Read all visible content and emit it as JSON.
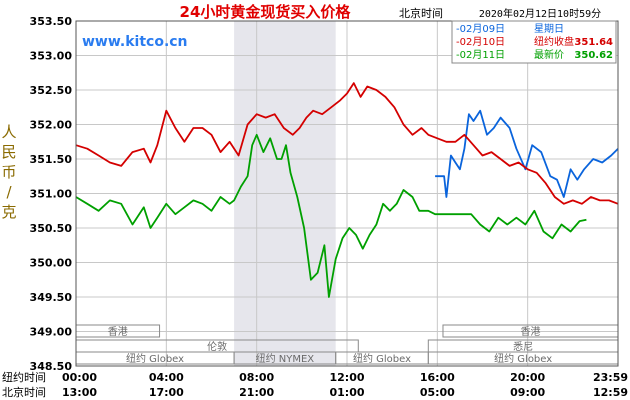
{
  "chart_data": {
    "type": "line",
    "title": "24小时黄金现货买入价格",
    "source": "www.kitco.cn",
    "timestamp_label": "北京时间",
    "timestamp": "2020年02月12日10时59分",
    "ylabel": "人民币/克",
    "ylim": [
      348.5,
      353.5
    ],
    "yticks": [
      "353.50",
      "353.00",
      "352.50",
      "352.00",
      "351.50",
      "351.00",
      "350.50",
      "350.00",
      "349.50",
      "349.00",
      "348.50"
    ],
    "xlim": [
      0,
      24
    ],
    "x_ticks": [
      {
        "x": 0,
        "ny": "00:00",
        "bj": "13:00"
      },
      {
        "x": 4,
        "ny": "04:00",
        "bj": "17:00"
      },
      {
        "x": 8,
        "ny": "08:00",
        "bj": "21:00"
      },
      {
        "x": 12,
        "ny": "12:00",
        "bj": "01:00"
      },
      {
        "x": 16,
        "ny": "16:00",
        "bj": "05:00"
      },
      {
        "x": 20,
        "ny": "20:00",
        "bj": "09:00"
      },
      {
        "x": 24,
        "ny": "23:59",
        "bj": "12:59"
      }
    ],
    "x_row_labels": [
      "纽约时间",
      "北京时间"
    ],
    "shaded_region": [
      7,
      11.5
    ],
    "markets": [
      {
        "name": "香港",
        "start": 0,
        "end": 3.7,
        "row": 0
      },
      {
        "name": "香港",
        "start": 16.25,
        "end": 24,
        "row": 0
      },
      {
        "name": "伦敦",
        "start": 0,
        "end": 12.5,
        "row": 1
      },
      {
        "name": "悉尼",
        "start": 15.6,
        "end": 24,
        "row": 1
      },
      {
        "name": "纽约 Globex",
        "start": 0,
        "end": 7,
        "row": 2
      },
      {
        "name": "纽约 NYMEX",
        "start": 7,
        "end": 11.5,
        "row": 2
      },
      {
        "name": "纽约 Globex",
        "start": 11.5,
        "end": 15.6,
        "row": 2
      },
      {
        "name": "纽约 Globex",
        "start": 15.6,
        "end": 24,
        "row": 2
      }
    ],
    "legend": [
      {
        "label": "-02月09日",
        "extra_label": "星期日",
        "extra_value": "",
        "color": "#0a64dc"
      },
      {
        "label": "-02月10日",
        "extra_label": "纽约收盘",
        "extra_value": "351.64",
        "color": "#d40000"
      },
      {
        "label": "-02月11日",
        "extra_label": "最新价",
        "extra_value": "350.62",
        "color": "#00a000"
      }
    ],
    "series": [
      {
        "name": "02月09日",
        "color": "#0a64dc",
        "x": [
          15.9,
          16.3,
          16.4,
          16.6,
          16.8,
          17.0,
          17.2,
          17.4,
          17.6,
          17.9,
          18.2,
          18.5,
          18.8,
          19.2,
          19.5,
          19.9,
          20.2,
          20.6,
          21.0,
          21.3,
          21.6,
          21.9,
          22.2,
          22.5,
          22.9,
          23.3,
          23.7,
          24.0
        ],
        "y": [
          351.25,
          351.25,
          350.95,
          351.55,
          351.45,
          351.35,
          351.65,
          352.15,
          352.05,
          352.2,
          351.85,
          351.95,
          352.1,
          351.95,
          351.65,
          351.35,
          351.7,
          351.6,
          351.25,
          351.2,
          350.95,
          351.35,
          351.2,
          351.35,
          351.5,
          351.45,
          351.55,
          351.65
        ]
      },
      {
        "name": "02月10日",
        "color": "#d40000",
        "x": [
          0.0,
          0.5,
          1.0,
          1.5,
          2.0,
          2.5,
          3.0,
          3.3,
          3.6,
          4.0,
          4.4,
          4.8,
          5.2,
          5.6,
          6.0,
          6.4,
          6.8,
          7.2,
          7.6,
          8.0,
          8.4,
          8.8,
          9.2,
          9.6,
          9.9,
          10.2,
          10.5,
          10.9,
          11.3,
          11.7,
          12.0,
          12.3,
          12.6,
          12.9,
          13.3,
          13.7,
          14.1,
          14.5,
          14.9,
          15.3,
          15.6,
          16.0,
          16.4,
          16.8,
          17.2,
          17.6,
          18.0,
          18.4,
          18.8,
          19.2,
          19.6,
          20.0,
          20.4,
          20.8,
          21.2,
          21.6,
          22.0,
          22.4,
          22.8,
          23.2,
          23.6,
          24.0
        ],
        "y": [
          351.7,
          351.65,
          351.55,
          351.45,
          351.4,
          351.6,
          351.65,
          351.45,
          351.7,
          352.2,
          351.95,
          351.75,
          351.95,
          351.95,
          351.85,
          351.6,
          351.75,
          351.55,
          352.0,
          352.15,
          352.1,
          352.15,
          351.95,
          351.85,
          351.95,
          352.1,
          352.2,
          352.15,
          352.25,
          352.35,
          352.45,
          352.6,
          352.4,
          352.55,
          352.5,
          352.4,
          352.25,
          352.0,
          351.85,
          351.95,
          351.85,
          351.8,
          351.75,
          351.75,
          351.85,
          351.7,
          351.55,
          351.6,
          351.5,
          351.4,
          351.45,
          351.35,
          351.3,
          351.15,
          350.95,
          350.85,
          350.9,
          350.85,
          350.95,
          350.9,
          350.9,
          350.85
        ]
      },
      {
        "name": "02月11日",
        "color": "#00a000",
        "x": [
          0.0,
          0.5,
          1.0,
          1.5,
          2.0,
          2.5,
          3.0,
          3.3,
          3.6,
          4.0,
          4.4,
          4.8,
          5.2,
          5.6,
          6.0,
          6.4,
          6.8,
          7.0,
          7.3,
          7.6,
          7.8,
          8.0,
          8.3,
          8.6,
          8.9,
          9.1,
          9.3,
          9.5,
          9.8,
          10.1,
          10.4,
          10.7,
          11.0,
          11.2,
          11.5,
          11.8,
          12.1,
          12.4,
          12.7,
          13.0,
          13.3,
          13.6,
          13.9,
          14.2,
          14.5,
          14.9,
          15.2,
          15.6,
          15.9,
          16.3,
          16.7,
          17.1,
          17.5,
          17.9,
          18.3,
          18.7,
          19.1,
          19.5,
          19.9,
          20.3,
          20.7,
          21.1,
          21.5,
          21.9,
          22.3,
          22.6
        ],
        "y": [
          350.95,
          350.85,
          350.75,
          350.9,
          350.85,
          350.55,
          350.8,
          350.5,
          350.65,
          350.85,
          350.7,
          350.8,
          350.9,
          350.85,
          350.75,
          350.95,
          350.85,
          350.9,
          351.1,
          351.25,
          351.7,
          351.85,
          351.6,
          351.8,
          351.5,
          351.5,
          351.7,
          351.3,
          350.95,
          350.5,
          349.75,
          349.85,
          350.25,
          349.5,
          350.05,
          350.35,
          350.5,
          350.4,
          350.2,
          350.4,
          350.55,
          350.85,
          350.75,
          350.85,
          351.05,
          350.95,
          350.75,
          350.75,
          350.7,
          350.7,
          350.7,
          350.7,
          350.7,
          350.55,
          350.45,
          350.65,
          350.55,
          350.65,
          350.55,
          350.75,
          350.45,
          350.35,
          350.55,
          350.45,
          350.6,
          350.62
        ]
      }
    ]
  }
}
